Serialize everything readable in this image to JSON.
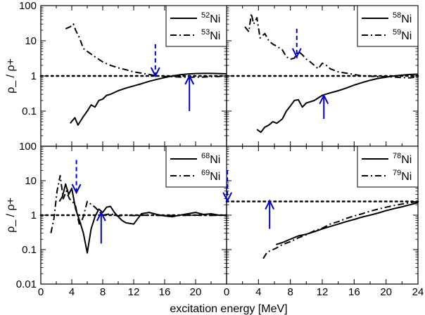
{
  "chart_data": {
    "type": "line",
    "ylabel": "ρ_ / ρ+",
    "xlabel": "excitation energy   [MeV]",
    "log_scale_y": true,
    "ylim": [
      0.01,
      100
    ],
    "y_tick_labels": [
      "0.01",
      "0.1",
      "1",
      "10",
      "100"
    ],
    "reference_line_y": 1,
    "panels": [
      {
        "position": "top-left",
        "xlim": [
          0,
          24
        ],
        "x_tick_labels": [],
        "legend": [
          {
            "mass": "52",
            "element": "Ni",
            "style": "solid"
          },
          {
            "mass": "53",
            "element": "Ni",
            "style": "dash-dot"
          }
        ],
        "legend_placement": "top-right",
        "reference_level": 1,
        "series": [
          {
            "style": "solid",
            "x": [
              3.8,
              4.4,
              4.8,
              5.5,
              6.0,
              6.5,
              7.0,
              7.5,
              8.0,
              8.5,
              9,
              10,
              11,
              12,
              13,
              14,
              15,
              16,
              17,
              18,
              19,
              20,
              21,
              22,
              23,
              24
            ],
            "y": [
              0.045,
              0.065,
              0.04,
              0.07,
              0.1,
              0.15,
              0.13,
              0.2,
              0.22,
              0.28,
              0.3,
              0.38,
              0.45,
              0.52,
              0.6,
              0.7,
              0.8,
              0.9,
              1.0,
              1.08,
              1.13,
              1.17,
              1.18,
              1.18,
              1.17,
              1.15
            ]
          },
          {
            "style": "dash-dot",
            "x": [
              3.2,
              3.8,
              4.2,
              4.5,
              5,
              5.5,
              6,
              7,
              8,
              9,
              10,
              11,
              12,
              13,
              14,
              15,
              16,
              17,
              18,
              19,
              20,
              21,
              22,
              23,
              24
            ],
            "y": [
              22,
              25,
              30,
              20,
              12,
              6,
              5,
              3.5,
              2.5,
              2.0,
              1.7,
              1.5,
              1.3,
              1.2,
              1.1,
              1.0,
              0.97,
              0.95,
              0.93,
              0.92,
              0.92,
              0.93,
              0.95,
              0.97,
              1.0
            ]
          }
        ],
        "arrows": [
          {
            "style": "dashed",
            "x": 14.8,
            "y_from": 8,
            "y_to": 1.0
          },
          {
            "style": "solid",
            "x": 19.2,
            "y_from": 0.1,
            "y_to": 1.0
          }
        ]
      },
      {
        "position": "top-right",
        "xlim": [
          0,
          24
        ],
        "x_tick_labels": [],
        "legend": [
          {
            "mass": "58",
            "element": "Ni",
            "style": "solid"
          },
          {
            "mass": "59",
            "element": "Ni",
            "style": "dash-dot"
          }
        ],
        "legend_placement": "top-right",
        "reference_level": 1,
        "series": [
          {
            "style": "solid",
            "x": [
              3.8,
              4.3,
              4.8,
              5.3,
              5.8,
              6.3,
              7,
              7.5,
              8,
              8.5,
              9,
              9.5,
              10,
              11,
              12,
              13,
              14,
              15,
              16,
              17,
              18,
              19,
              20,
              21,
              22,
              23,
              24
            ],
            "y": [
              0.03,
              0.025,
              0.035,
              0.04,
              0.05,
              0.045,
              0.06,
              0.1,
              0.14,
              0.2,
              0.21,
              0.13,
              0.17,
              0.2,
              0.28,
              0.33,
              0.38,
              0.45,
              0.55,
              0.65,
              0.75,
              0.85,
              0.92,
              1.0,
              1.05,
              1.1,
              1.12
            ]
          },
          {
            "style": "dash-dot",
            "x": [
              2.3,
              2.8,
              3.1,
              3.4,
              3.8,
              4.2,
              4.8,
              5.3,
              5.8,
              6.3,
              7,
              7.5,
              8,
              8.5,
              9,
              9.5,
              10,
              10.5,
              11,
              11.5,
              12,
              12.5,
              13,
              14,
              15,
              16,
              17,
              18,
              19,
              20,
              21,
              22,
              23,
              24
            ],
            "y": [
              25,
              18,
              60,
              30,
              45,
              12,
              16,
              10,
              8,
              7,
              5.5,
              3.5,
              3.0,
              3.2,
              5.0,
              4.0,
              3.0,
              2.5,
              2.0,
              1.6,
              2.3,
              2.0,
              1.6,
              1.3,
              1.2,
              1.1,
              1.0,
              0.98,
              0.95,
              0.97,
              0.93,
              0.9,
              0.88,
              0.95
            ]
          }
        ],
        "arrows": [
          {
            "style": "dashed",
            "x": 8.8,
            "y_from": 22,
            "y_to": 3.5
          },
          {
            "style": "solid",
            "x": 12.2,
            "y_from": 0.06,
            "y_to": 0.28
          }
        ]
      },
      {
        "position": "bottom-left",
        "xlim": [
          0,
          24
        ],
        "x_tick_labels": [
          "0",
          "4",
          "8",
          "12",
          "16",
          "20"
        ],
        "legend": [
          {
            "mass": "68",
            "element": "Ni",
            "style": "solid"
          },
          {
            "mass": "69",
            "element": "Ni",
            "style": "dash-dot"
          }
        ],
        "legend_placement": "top-right",
        "reference_level": 1,
        "series": [
          {
            "style": "solid",
            "x": [
              2.4,
              2.8,
              3.2,
              3.6,
              4.0,
              4.5,
              5.0,
              5.5,
              6.0,
              6.5,
              7,
              7.5,
              8,
              8.5,
              9,
              9.5,
              10,
              10.5,
              11,
              12,
              13,
              14,
              15,
              16,
              17,
              18,
              19,
              20,
              21,
              22,
              23,
              24
            ],
            "y": [
              2.5,
              3.5,
              8,
              4,
              6,
              1.5,
              0.7,
              0.3,
              0.08,
              0.4,
              0.9,
              1.5,
              1.2,
              1.7,
              1.8,
              1.2,
              0.9,
              0.7,
              0.6,
              0.55,
              1.1,
              1.2,
              1.05,
              0.95,
              0.9,
              1.0,
              1.1,
              1.2,
              1.05,
              1.1,
              1.0,
              1.0
            ]
          },
          {
            "style": "dash-dot",
            "x": [
              1.3,
              1.7,
              2.1,
              2.5,
              2.9,
              3.3,
              3.7,
              4.1,
              4.5,
              5,
              5.5,
              6,
              7,
              8,
              9,
              10,
              11,
              12,
              14,
              16,
              18,
              20,
              22,
              24
            ],
            "y": [
              0.3,
              0.8,
              5,
              14,
              3,
              5,
              3,
              2.5,
              1.8,
              0.5,
              0.9,
              2.5,
              1.7,
              1.0,
              1.1,
              0.95,
              1.0,
              0.97,
              1.0,
              0.97,
              0.98,
              1.0,
              0.98,
              1.0
            ]
          }
        ],
        "arrows": [
          {
            "style": "dashed",
            "x": 4.6,
            "y_from": 40,
            "y_to": 4.5
          },
          {
            "style": "solid",
            "x": 7.8,
            "y_from": 0.15,
            "y_to": 1.2
          }
        ]
      },
      {
        "position": "bottom-right",
        "xlim": [
          0,
          24
        ],
        "x_tick_labels": [
          "0",
          "4",
          "8",
          "12",
          "16",
          "20",
          "24"
        ],
        "legend": [
          {
            "mass": "78",
            "element": "Ni",
            "style": "solid"
          },
          {
            "mass": "79",
            "element": "Ni",
            "style": "dash-dot"
          }
        ],
        "legend_placement": "top-right",
        "reference_level": 2.5,
        "series": [
          {
            "style": "solid",
            "x": [
              6.2,
              7,
              8,
              9,
              10,
              11,
              12,
              13,
              14,
              15,
              16,
              17,
              18,
              19,
              20,
              21,
              22,
              23,
              24
            ],
            "y": [
              0.14,
              0.16,
              0.2,
              0.25,
              0.28,
              0.33,
              0.4,
              0.47,
              0.55,
              0.65,
              0.75,
              0.88,
              1.0,
              1.15,
              1.35,
              1.55,
              1.75,
              2.0,
              2.3
            ]
          },
          {
            "style": "dash-dot",
            "x": [
              4.6,
              5.1,
              5.6,
              6.2,
              7,
              8,
              9,
              10,
              11,
              12,
              13,
              14,
              15,
              16,
              17,
              18,
              19,
              20,
              21,
              22,
              23,
              24
            ],
            "y": [
              0.055,
              0.085,
              0.095,
              0.11,
              0.14,
              0.17,
              0.22,
              0.27,
              0.35,
              0.42,
              0.55,
              0.65,
              0.8,
              0.95,
              1.1,
              1.3,
              1.5,
              1.7,
              1.9,
              2.1,
              2.3,
              2.5
            ]
          }
        ],
        "arrows": [
          {
            "style": "dashed",
            "x": 0.1,
            "y_from": 20,
            "y_to": 2.6
          },
          {
            "style": "solid",
            "x": 5.4,
            "y_from": 0.4,
            "y_to": 2.6
          }
        ]
      }
    ]
  }
}
